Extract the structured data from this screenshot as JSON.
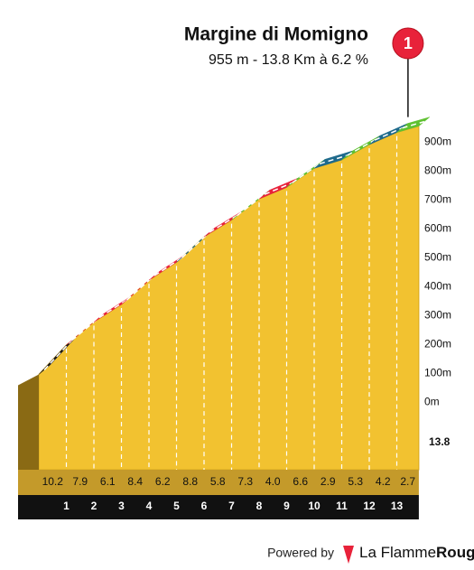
{
  "chart_data": {
    "type": "climb-profile",
    "title": "Margine di Momigno",
    "subtitle": "955 m - 13.8 Km à 6.2 %",
    "marker_label": "1",
    "x": [
      0,
      1,
      2,
      3,
      4,
      5,
      6,
      7,
      8,
      9,
      10,
      11,
      12,
      13,
      13.8
    ],
    "elevation": [
      96,
      198,
      277,
      338,
      422,
      484,
      572,
      630,
      703,
      743,
      809,
      838,
      891,
      933,
      955
    ],
    "gradients": [
      10.2,
      7.9,
      6.1,
      8.4,
      6.2,
      8.8,
      5.8,
      7.3,
      4.0,
      6.6,
      2.9,
      5.3,
      4.2,
      2.7
    ],
    "value_labels": [
      "10.2",
      "7.9",
      "6.1",
      "8.4",
      "6.2",
      "8.8",
      "5.8",
      "7.3",
      "4.0",
      "6.6",
      "2.9",
      "5.3",
      "4.2",
      "2.7"
    ],
    "colors": [
      "#1a1a1a",
      "#e8223a",
      "#e8223a",
      "#e8223a",
      "#e8223a",
      "#1e6a8c",
      "#e8223a",
      "#5fc131",
      "#e8223a",
      "#5fc131",
      "#1e6a8c",
      "#5fc131",
      "#1e6a8c",
      "#5fc131"
    ],
    "ylim": [
      -140,
      985
    ],
    "yticks": [
      {
        "value": 0,
        "label": "0m"
      },
      {
        "value": 100,
        "label": "100m"
      },
      {
        "value": 200,
        "label": "200m"
      },
      {
        "value": 300,
        "label": "300m"
      },
      {
        "value": 400,
        "label": "400m"
      },
      {
        "value": 500,
        "label": "500m"
      },
      {
        "value": 600,
        "label": "600m"
      },
      {
        "value": 700,
        "label": "700m"
      },
      {
        "value": 800,
        "label": "800m"
      },
      {
        "value": 900,
        "label": "900m"
      }
    ],
    "footer": {
      "powered": "Powered by",
      "brand": "La Flamme",
      "brand_bold": "Rouge"
    }
  }
}
